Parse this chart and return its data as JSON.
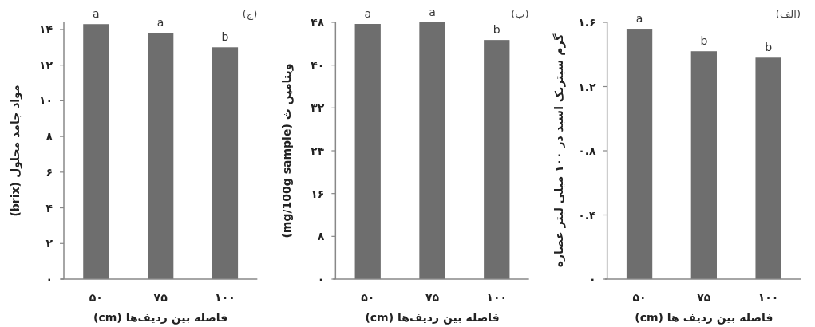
{
  "chart_data": [
    {
      "type": "bar",
      "categories": [
        "۵۰",
        "۷۵",
        "۱۰۰"
      ],
      "values": [
        14.3,
        13.8,
        13.0
      ],
      "color": "#6e6e6e",
      "ylim": [
        0,
        14.4
      ],
      "yticks": [
        {
          "value": 0,
          "label": "۰"
        },
        {
          "value": 2,
          "label": "۲"
        },
        {
          "value": 4,
          "label": "۴"
        },
        {
          "value": 6,
          "label": "۶"
        },
        {
          "value": 8,
          "label": "۸"
        },
        {
          "value": 10,
          "label": "۱۰"
        },
        {
          "value": 12,
          "label": "۱۲"
        },
        {
          "value": 14,
          "label": "۱۴"
        }
      ],
      "ylabel": "مواد جامد محلول (brix)",
      "xlabel": "فاصله بین ردیف‌ها (cm)",
      "grid": false,
      "annotations": [
        {
          "text": "a",
          "x": "۵۰",
          "y": 14.3
        },
        {
          "text": "a",
          "x": "۷۵",
          "y": 13.8
        },
        {
          "text": "b",
          "x": "۱۰۰",
          "y": 13.0
        },
        "(ج)"
      ]
    },
    {
      "type": "bar",
      "categories": [
        "۵۰",
        "۷۵",
        "۱۰۰"
      ],
      "values": [
        47.7,
        48,
        44.7
      ],
      "color": "#6e6e6e",
      "ylim": [
        0,
        48
      ],
      "yticks": [
        {
          "value": 0,
          "label": "۰"
        },
        {
          "value": 8,
          "label": "۸"
        },
        {
          "value": 16,
          "label": "۱۶"
        },
        {
          "value": 24,
          "label": "۲۴"
        },
        {
          "value": 32,
          "label": "۳۲"
        },
        {
          "value": 40,
          "label": "۴۰"
        },
        {
          "value": 48,
          "label": "۴۸"
        }
      ],
      "ylabel": "ویتامین ث (mg/100g sample)",
      "xlabel": "فاصله بین ردیف‌ها (cm)",
      "grid": false,
      "annotations": [
        {
          "text": "a",
          "x": "۵۰",
          "y": 47.7
        },
        {
          "text": "a",
          "x": "۷۵",
          "y": 48
        },
        {
          "text": "b",
          "x": "۱۰۰",
          "y": 44.7
        },
        "(ب)"
      ]
    },
    {
      "type": "bar",
      "categories": [
        "۵۰",
        "۷۵",
        "۱۰۰"
      ],
      "values": [
        1.56,
        1.42,
        1.38
      ],
      "color": "#6e6e6e",
      "ylim": [
        0,
        1.6
      ],
      "yticks": [
        {
          "value": 0,
          "label": "۰"
        },
        {
          "value": 0.4,
          "label": "۰.۴"
        },
        {
          "value": 0.8,
          "label": "۰.۸"
        },
        {
          "value": 1.2,
          "label": "۱.۲"
        },
        {
          "value": 1.6,
          "label": "۱.۶"
        }
      ],
      "ylabel": "گرم سیتریک اسید در ۱۰۰ میلی لیتر عصاره",
      "xlabel": "فاصله بین ردیف ها (cm)",
      "grid": false,
      "annotations": [
        {
          "text": "a",
          "x": "۵۰",
          "y": 1.56
        },
        {
          "text": "b",
          "x": "۷۵",
          "y": 1.42
        },
        {
          "text": "b",
          "x": "۱۰۰",
          "y": 1.38
        },
        "(الف)"
      ]
    }
  ]
}
